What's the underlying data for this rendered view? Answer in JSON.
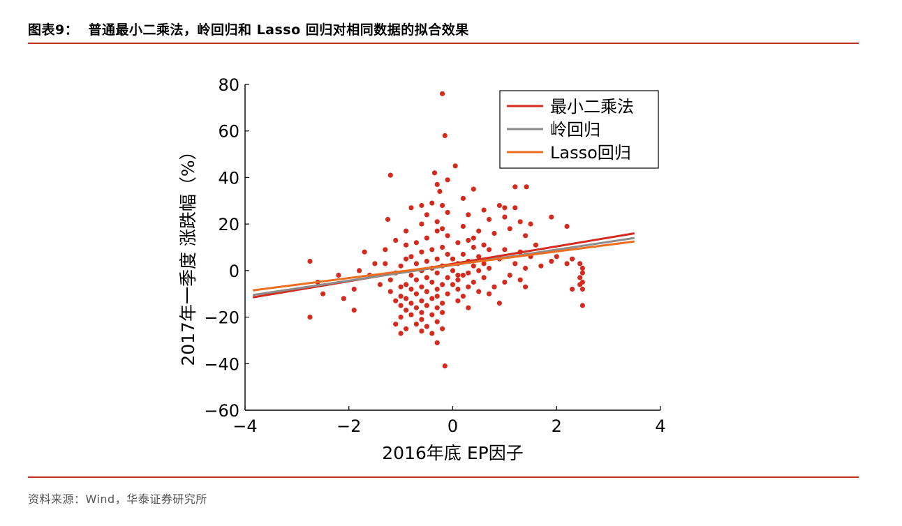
{
  "header": {
    "title": "图表9：  普通最小二乘法，岭回归和 Lasso 回归对相同数据的拟合效果"
  },
  "footer": {
    "source": "资料来源：Wind，华泰证券研究所"
  },
  "colors": {
    "accent_rule": "#c0321e",
    "ols": "#d42b1e",
    "ridge": "#8c8c8c",
    "lasso": "#ec6f1f",
    "points": "#d42b1e"
  },
  "chart_data": {
    "type": "scatter",
    "xlabel": "2016年底 EP因子",
    "ylabel": "2017年一季度 涨跌幅（%）",
    "xlim": [
      -4,
      4
    ],
    "ylim": [
      -60,
      80
    ],
    "xticks": [
      -4,
      -2,
      0,
      2,
      4
    ],
    "yticks": [
      -60,
      -40,
      -20,
      0,
      20,
      40,
      60,
      80
    ],
    "xtick_labels": [
      "−4",
      "−2",
      "0",
      "2",
      "4"
    ],
    "ytick_labels": [
      "−60",
      "−40",
      "−20",
      "0",
      "20",
      "40",
      "60",
      "80"
    ],
    "grid": false,
    "legend_position": "top-right",
    "series": [
      {
        "name": "最小二乘法",
        "kind": "line",
        "color": "#d42b1e",
        "x": [
          -3.85,
          3.5
        ],
        "y": [
          -11.5,
          16
        ]
      },
      {
        "name": "岭回归",
        "kind": "line",
        "color": "#8c8c8c",
        "x": [
          -3.85,
          3.5
        ],
        "y": [
          -10.5,
          14
        ]
      },
      {
        "name": "Lasso回归",
        "kind": "line",
        "color": "#ec6f1f",
        "x": [
          -3.85,
          3.5
        ],
        "y": [
          -8.5,
          12.5
        ]
      }
    ],
    "points": [
      [
        -0.2,
        76
      ],
      [
        -0.15,
        58
      ],
      [
        0.05,
        45
      ],
      [
        -0.35,
        42
      ],
      [
        -1.2,
        41
      ],
      [
        -0.1,
        39
      ],
      [
        -0.3,
        37
      ],
      [
        0.4,
        35
      ],
      [
        1.2,
        36
      ],
      [
        1.42,
        36
      ],
      [
        -0.25,
        34
      ],
      [
        0.2,
        31
      ],
      [
        -0.4,
        29
      ],
      [
        -0.2,
        28
      ],
      [
        -0.6,
        28
      ],
      [
        -0.8,
        27
      ],
      [
        0.9,
        28
      ],
      [
        1.0,
        27
      ],
      [
        1.2,
        27
      ],
      [
        0.6,
        26
      ],
      [
        0.3,
        24
      ],
      [
        -0.1,
        25
      ],
      [
        -0.5,
        24
      ],
      [
        1.0,
        23
      ],
      [
        -1.25,
        22
      ],
      [
        1.9,
        23
      ],
      [
        1.3,
        21
      ],
      [
        1.5,
        20
      ],
      [
        0.7,
        22
      ],
      [
        -0.3,
        21
      ],
      [
        -0.6,
        20
      ],
      [
        1.1,
        18
      ],
      [
        2.2,
        19
      ],
      [
        0.2,
        19
      ],
      [
        -0.9,
        17
      ],
      [
        -0.3,
        17
      ],
      [
        0.5,
        17
      ],
      [
        0.8,
        16
      ],
      [
        -0.1,
        15
      ],
      [
        1.4,
        15
      ],
      [
        -0.5,
        14
      ],
      [
        -1.1,
        13
      ],
      [
        0.3,
        13
      ],
      [
        0.1,
        12
      ],
      [
        -0.7,
        12
      ],
      [
        0.6,
        11
      ],
      [
        1.6,
        11
      ],
      [
        -0.9,
        11
      ],
      [
        -0.2,
        10
      ],
      [
        0.4,
        10
      ],
      [
        -0.4,
        9
      ],
      [
        1.0,
        9
      ],
      [
        0.7,
        9
      ],
      [
        -0.6,
        8
      ],
      [
        -1.7,
        8
      ],
      [
        1.3,
        8
      ],
      [
        -0.1,
        7
      ],
      [
        0.2,
        7
      ],
      [
        -0.8,
        6
      ],
      [
        0.5,
        6
      ],
      [
        1.5,
        6
      ],
      [
        2.0,
        6
      ],
      [
        0.0,
        5
      ],
      [
        -0.3,
        5
      ],
      [
        -0.9,
        5
      ],
      [
        0.9,
        5
      ],
      [
        2.3,
        5
      ],
      [
        1.9,
        4
      ],
      [
        -0.5,
        4
      ],
      [
        0.3,
        4
      ],
      [
        -1.3,
        3
      ],
      [
        0.1,
        3
      ],
      [
        -0.7,
        3
      ],
      [
        1.2,
        3
      ],
      [
        2.45,
        3
      ],
      [
        -2.75,
        4
      ],
      [
        -1.5,
        3
      ],
      [
        -0.2,
        2
      ],
      [
        0.4,
        2
      ],
      [
        -1.0,
        2
      ],
      [
        -0.4,
        1
      ],
      [
        0.7,
        1
      ],
      [
        1.4,
        1
      ],
      [
        2.5,
        1
      ],
      [
        -1.8,
        0
      ],
      [
        -0.6,
        0
      ],
      [
        0.0,
        0
      ],
      [
        0.5,
        0
      ],
      [
        -1.1,
        -1
      ],
      [
        -0.3,
        -1
      ],
      [
        0.3,
        -1
      ],
      [
        2.5,
        -1
      ],
      [
        -2.2,
        -2
      ],
      [
        -0.8,
        -2
      ],
      [
        0.2,
        -2
      ],
      [
        1.1,
        -2
      ],
      [
        -1.6,
        -2
      ],
      [
        -0.1,
        -3
      ],
      [
        0.6,
        -3
      ],
      [
        2.45,
        -3
      ],
      [
        -0.5,
        -3
      ],
      [
        -1.2,
        -4
      ],
      [
        0.1,
        -4
      ],
      [
        -0.7,
        -4
      ],
      [
        1.3,
        -4
      ],
      [
        2.5,
        -5
      ],
      [
        -2.6,
        -5
      ],
      [
        -0.4,
        -5
      ],
      [
        0.4,
        -5
      ],
      [
        -0.9,
        -6
      ],
      [
        0.0,
        -6
      ],
      [
        -1.4,
        -6
      ],
      [
        -0.2,
        -6
      ],
      [
        2.45,
        -6
      ],
      [
        0.8,
        -7
      ],
      [
        -0.6,
        -7
      ],
      [
        -1.0,
        -7
      ],
      [
        0.3,
        -7
      ],
      [
        1.4,
        -7
      ],
      [
        -0.3,
        -8
      ],
      [
        2.5,
        -8
      ],
      [
        -1.9,
        -8
      ],
      [
        -0.8,
        -8
      ],
      [
        0.1,
        -8
      ],
      [
        2.3,
        -8
      ],
      [
        -0.5,
        -9
      ],
      [
        0.5,
        -9
      ],
      [
        -1.2,
        -9
      ],
      [
        -2.5,
        -10
      ],
      [
        -0.1,
        -10
      ],
      [
        -0.7,
        -10
      ],
      [
        0.7,
        -10
      ],
      [
        -0.3,
        -11
      ],
      [
        -1.0,
        -11
      ],
      [
        0.2,
        -11
      ],
      [
        -0.9,
        -12
      ],
      [
        -0.4,
        -12
      ],
      [
        -2.1,
        -12
      ],
      [
        -0.6,
        -13
      ],
      [
        0.1,
        -13
      ],
      [
        -1.1,
        -13
      ],
      [
        -0.2,
        -14
      ],
      [
        0.9,
        -14
      ],
      [
        -0.8,
        -14
      ],
      [
        -0.5,
        -15
      ],
      [
        2.5,
        -15
      ],
      [
        -1.0,
        -15
      ],
      [
        -0.3,
        -16
      ],
      [
        -0.7,
        -16
      ],
      [
        0.3,
        -16
      ],
      [
        -1.9,
        -17
      ],
      [
        -0.9,
        -17
      ],
      [
        -0.6,
        -18
      ],
      [
        -0.2,
        -18
      ],
      [
        -0.8,
        -19
      ],
      [
        -0.4,
        -19
      ],
      [
        -2.75,
        -20
      ],
      [
        -1.0,
        -20
      ],
      [
        -0.6,
        -21
      ],
      [
        -0.3,
        -22
      ],
      [
        -1.1,
        -23
      ],
      [
        -0.7,
        -23
      ],
      [
        -0.5,
        -24
      ],
      [
        -0.2,
        -25
      ],
      [
        -0.9,
        -25
      ],
      [
        -0.6,
        -26
      ],
      [
        -1.0,
        -27
      ],
      [
        -0.4,
        -27
      ],
      [
        -0.3,
        -31
      ],
      [
        -0.15,
        -41
      ],
      [
        0.1,
        -2
      ],
      [
        0.6,
        3
      ],
      [
        1.0,
        -5
      ],
      [
        -1.3,
        9
      ],
      [
        -0.2,
        18
      ],
      [
        0.4,
        14
      ],
      [
        1.7,
        2
      ],
      [
        2.2,
        3
      ]
    ]
  }
}
